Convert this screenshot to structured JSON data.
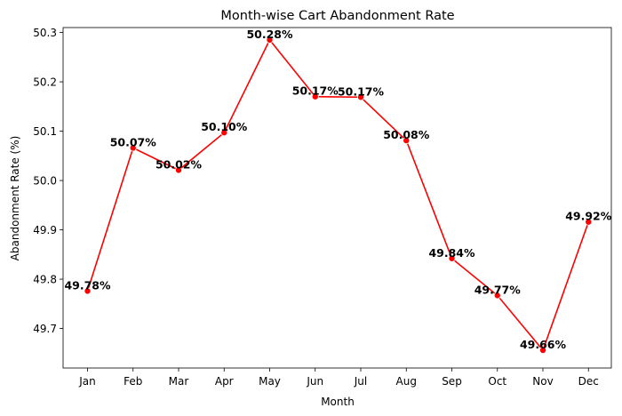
{
  "chart_data": {
    "type": "line",
    "title": "Month-wise Cart Abandonment Rate",
    "xlabel": "Month",
    "ylabel": "Abandonment Rate (%)",
    "categories": [
      "Jan",
      "Feb",
      "Mar",
      "Apr",
      "May",
      "Jun",
      "Jul",
      "Aug",
      "Sep",
      "Oct",
      "Nov",
      "Dec"
    ],
    "series": [
      {
        "values": [
          49.776,
          50.066,
          50.021,
          50.097,
          50.285,
          50.17,
          50.169,
          50.081,
          49.842,
          49.767,
          49.656,
          49.916
        ],
        "labels": [
          "49.78%",
          "50.07%",
          "50.02%",
          "50.10%",
          "50.28%",
          "50.17%",
          "50.17%",
          "50.08%",
          "49.84%",
          "49.77%",
          "49.66%",
          "49.92%"
        ],
        "color": "#ff0000",
        "marker": "circle"
      }
    ],
    "yticks": [
      "49.7",
      "49.8",
      "49.9",
      "50.0",
      "50.1",
      "50.2",
      "50.3"
    ],
    "ylim": [
      49.62,
      50.31
    ],
    "grid": false,
    "legend": "none"
  }
}
